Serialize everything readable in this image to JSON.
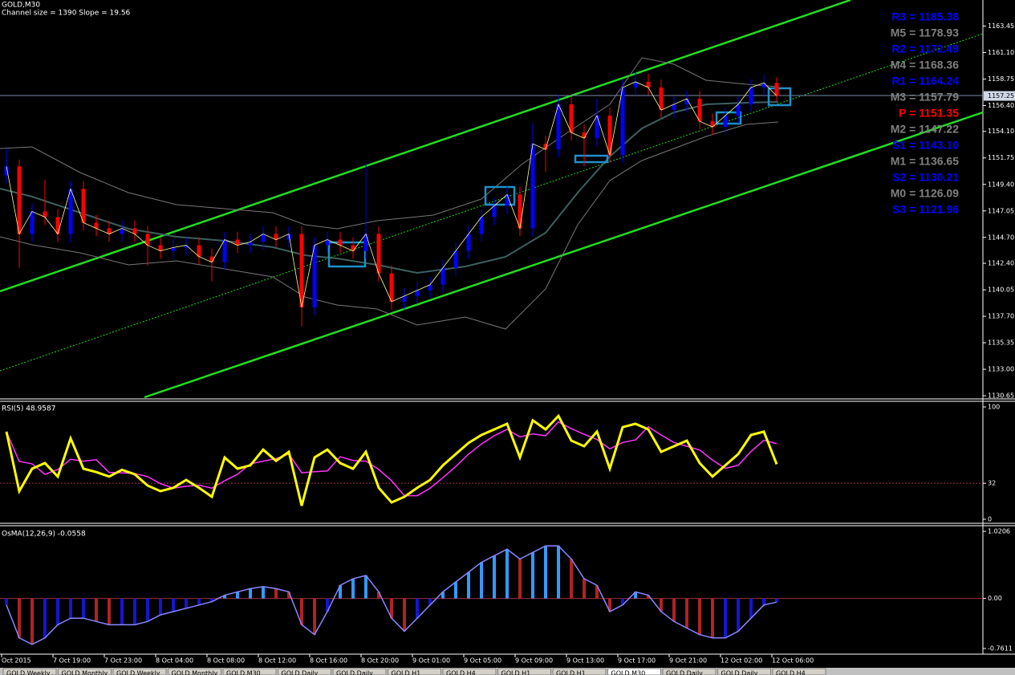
{
  "window": {
    "symbol_label": "GOLD,M30",
    "channel_info": "Channel size = 1390 Slope = 19.56"
  },
  "price_panel": {
    "ylim": [
      1130.37,
      1165.76
    ],
    "yticks": [
      1163.45,
      {
        "value": 1161.1,
        "label": "1161.10"
      },
      1158.75,
      {
        "value": 1156.4,
        "label": "1156.40"
      },
      {
        "value": 1154.1,
        "label": "1154.10"
      },
      1151.75,
      {
        "value": 1149.4,
        "label": "1149.40"
      },
      1147.05,
      {
        "value": 1144.7,
        "label": "1144.70"
      },
      {
        "value": 1142.4,
        "label": "1142.40"
      },
      1140.05,
      {
        "value": 1137.7,
        "label": "1137.70"
      },
      1135.35,
      {
        "value": 1133,
        "label": "1133.00"
      },
      1130.65
    ],
    "current_price": 1157.25,
    "up_color": "#0000ff",
    "down_color": "#ff0000",
    "candles": [
      [
        1150.2,
        1152.6,
        1149.5,
        1151.0
      ],
      [
        1151.0,
        1151.6,
        1142.0,
        1145.0
      ],
      [
        1145.0,
        1147.7,
        1144.3,
        1147.0
      ],
      [
        1147.0,
        1149.8,
        1145.8,
        1146.5
      ],
      [
        1146.5,
        1147.2,
        1144.3,
        1145.0
      ],
      [
        1145.0,
        1149.7,
        1144.3,
        1149.0
      ],
      [
        1149.0,
        1149.7,
        1145.3,
        1146.0
      ],
      [
        1146.0,
        1146.7,
        1144.8,
        1145.5
      ],
      [
        1145.5,
        1146.2,
        1144.3,
        1145.0
      ],
      [
        1145.0,
        1146.2,
        1144.3,
        1145.5
      ],
      [
        1145.5,
        1146.2,
        1144.3,
        1145.0
      ],
      [
        1145.0,
        1145.7,
        1142.2,
        1144.0
      ],
      [
        1144.0,
        1144.7,
        1142.8,
        1143.5
      ],
      [
        1143.5,
        1144.5,
        1142.8,
        1143.8
      ],
      [
        1143.8,
        1144.7,
        1143.1,
        1144.0
      ],
      [
        1144.0,
        1144.7,
        1142.3,
        1143.0
      ],
      [
        1143.0,
        1143.7,
        1140.8,
        1142.5
      ],
      [
        1142.5,
        1145.2,
        1141.8,
        1144.5
      ],
      [
        1144.5,
        1145.2,
        1143.3,
        1144.0
      ],
      [
        1144.0,
        1145.0,
        1143.3,
        1144.3
      ],
      [
        1144.3,
        1145.7,
        1143.6,
        1145.0
      ],
      [
        1145.0,
        1145.7,
        1143.8,
        1144.5
      ],
      [
        1144.5,
        1145.7,
        1143.8,
        1145.0
      ],
      [
        1145.0,
        1145.7,
        1136.8,
        1138.5
      ],
      [
        1138.5,
        1144.7,
        1137.8,
        1144.0
      ],
      [
        1144.0,
        1145.2,
        1143.3,
        1144.5
      ],
      [
        1144.5,
        1145.2,
        1143.3,
        1144.0
      ],
      [
        1144.0,
        1144.7,
        1142.8,
        1143.5
      ],
      [
        1143.5,
        1151.3,
        1142.8,
        1145.0
      ],
      [
        1145.0,
        1145.7,
        1140.8,
        1141.5
      ],
      [
        1141.5,
        1142.2,
        1138.3,
        1139.0
      ],
      [
        1139.0,
        1140.2,
        1138.3,
        1139.5
      ],
      [
        1139.5,
        1140.7,
        1138.8,
        1140.0
      ],
      [
        1140.0,
        1141.2,
        1139.3,
        1140.5
      ],
      [
        1140.5,
        1142.7,
        1139.8,
        1142.0
      ],
      [
        1142.0,
        1144.2,
        1141.3,
        1143.5
      ],
      [
        1143.5,
        1145.7,
        1142.8,
        1145.0
      ],
      [
        1145.0,
        1147.2,
        1144.3,
        1146.5
      ],
      [
        1146.5,
        1148.2,
        1145.8,
        1147.5
      ],
      [
        1147.5,
        1149.2,
        1146.8,
        1148.5
      ],
      [
        1148.5,
        1149.2,
        1144.8,
        1145.5
      ],
      [
        1145.5,
        1154.8,
        1144.8,
        1153.0
      ],
      [
        1153.0,
        1153.7,
        1150.5,
        1152.5
      ],
      [
        1152.5,
        1157.3,
        1151.8,
        1156.5
      ],
      [
        1156.5,
        1157.2,
        1153.3,
        1154.0
      ],
      [
        1154.0,
        1154.7,
        1151.0,
        1153.5
      ],
      [
        1153.5,
        1157.0,
        1152.8,
        1155.5
      ],
      [
        1155.5,
        1156.2,
        1151.3,
        1152.0
      ],
      [
        1152.0,
        1158.7,
        1151.3,
        1158.0
      ],
      [
        1158.0,
        1159.4,
        1157.3,
        1158.5
      ],
      [
        1158.5,
        1159.2,
        1157.3,
        1158.0
      ],
      [
        1158.0,
        1158.7,
        1155.3,
        1156.0
      ],
      [
        1156.0,
        1157.2,
        1155.3,
        1156.5
      ],
      [
        1156.5,
        1157.7,
        1155.8,
        1157.0
      ],
      [
        1157.0,
        1157.7,
        1154.3,
        1155.0
      ],
      [
        1155.0,
        1155.7,
        1153.8,
        1154.5
      ],
      [
        1154.5,
        1156.2,
        1153.8,
        1155.5
      ],
      [
        1155.5,
        1157.2,
        1154.8,
        1156.5
      ],
      [
        1156.5,
        1158.7,
        1155.8,
        1158.0
      ],
      [
        1158.0,
        1159.1,
        1157.3,
        1158.4
      ],
      [
        1158.4,
        1158.9,
        1156.8,
        1157.25
      ]
    ]
  },
  "pivots": [
    {
      "label": "R3 = 1185.38",
      "color": "#0000ff"
    },
    {
      "label": "M5 = 1178.93",
      "color": "#808080"
    },
    {
      "label": "R2 = 1172.49",
      "color": "#0000ff"
    },
    {
      "label": "M4 = 1168.36",
      "color": "#808080"
    },
    {
      "label": "R1 = 1164.24",
      "color": "#0000ff"
    },
    {
      "label": "M3 = 1157.79",
      "color": "#808080"
    },
    {
      "label": "P = 1151.35",
      "color": "#ff0000"
    },
    {
      "label": "M2 = 1147.22",
      "color": "#808080"
    },
    {
      "label": "S1 = 1143.10",
      "color": "#0000ff"
    },
    {
      "label": "M1 = 1136.65",
      "color": "#808080"
    },
    {
      "label": "S2 = 1130.21",
      "color": "#0000ff"
    },
    {
      "label": "M0 = 1126.09",
      "color": "#808080"
    },
    {
      "label": "S3 = 1121.96",
      "color": "#0000ff"
    }
  ],
  "rsi_panel": {
    "header": "RSI(5) 48.9587",
    "ylim": [
      -3.6,
      105
    ],
    "yticks": [
      100,
      32,
      0
    ],
    "level": 32,
    "color": "#ffff00",
    "values": [
      78,
      25,
      45,
      50,
      38,
      72,
      45,
      42,
      38,
      44,
      40,
      30,
      25,
      28,
      35,
      28,
      20,
      55,
      45,
      48,
      62,
      52,
      60,
      12,
      55,
      62,
      50,
      45,
      60,
      28,
      15,
      20,
      28,
      35,
      48,
      58,
      68,
      75,
      80,
      85,
      55,
      88,
      80,
      92,
      70,
      65,
      78,
      45,
      82,
      85,
      80,
      60,
      65,
      70,
      50,
      38,
      48,
      58,
      75,
      78,
      48.9587
    ]
  },
  "osma_panel": {
    "header": "OsMA(12,26,9) -0.0558",
    "ylim": [
      -0.847,
      1.1066
    ],
    "yticks": [
      1.0206,
      {
        "value": 0,
        "label": "0.00"
      },
      -0.7611
    ],
    "values": [
      -0.1,
      -0.6,
      -0.7,
      -0.6,
      -0.4,
      -0.3,
      -0.3,
      -0.35,
      -0.4,
      -0.4,
      -0.4,
      -0.35,
      -0.25,
      -0.2,
      -0.15,
      -0.1,
      -0.05,
      0.05,
      0.1,
      0.15,
      0.18,
      0.15,
      0.1,
      -0.4,
      -0.55,
      -0.2,
      0.2,
      0.3,
      0.35,
      0.1,
      -0.3,
      -0.5,
      -0.3,
      -0.1,
      0.1,
      0.25,
      0.4,
      0.55,
      0.65,
      0.75,
      0.6,
      0.7,
      0.8,
      0.8,
      0.6,
      0.3,
      0.2,
      -0.2,
      -0.1,
      0.1,
      0.05,
      -0.2,
      -0.35,
      -0.45,
      -0.55,
      -0.6,
      -0.6,
      -0.5,
      -0.3,
      -0.1,
      -0.0558
    ]
  },
  "time_axis": [
    "Oct 2015",
    "7 Oct 19:00",
    "7 Oct 23:00",
    "8 Oct 04:00",
    "8 Oct 08:00",
    "8 Oct 12:00",
    "8 Oct 16:00",
    "8 Oct 20:00",
    "9 Oct 01:00",
    "9 Oct 05:00",
    "9 Oct 09:00",
    "9 Oct 13:00",
    "9 Oct 17:00",
    "9 Oct 21:00",
    "12 Oct 02:00",
    "12 Oct 06:00"
  ],
  "tabs": [
    "GOLD,Weekly",
    "GOLD,Monthly",
    "GOLD,Weekly",
    "GOLD,Monthly",
    "GOLD,M30",
    "GOLD,Daily",
    "GOLD,Daily",
    "GOLD,H1",
    "GOLD,H4",
    "GOLD,H1",
    "GOLD,H1",
    "GOLD,M30",
    "GOLD,Daily",
    "GOLD,Daily",
    "GOLD,H4"
  ]
}
